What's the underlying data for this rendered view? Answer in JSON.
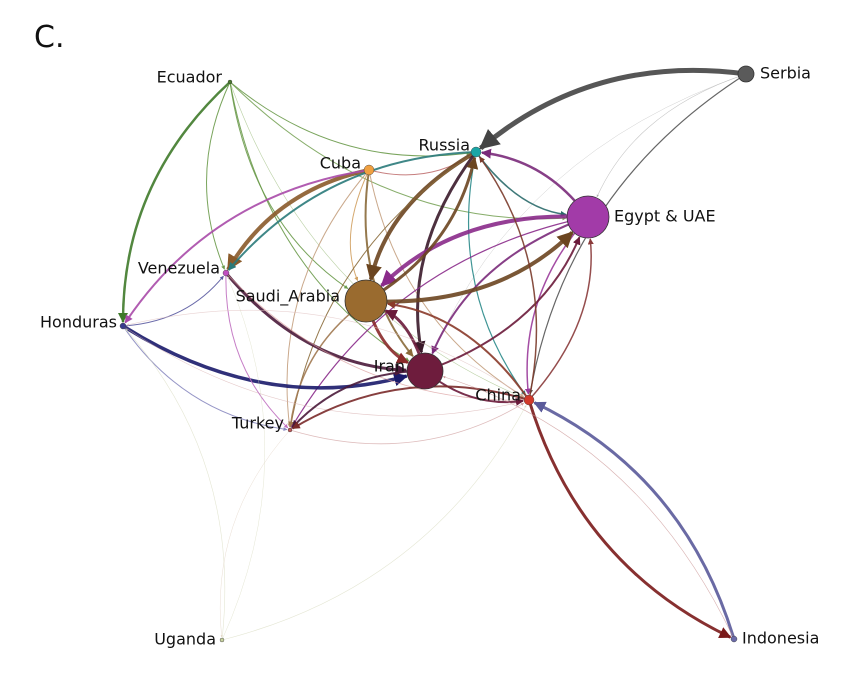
{
  "panel_label": "C.",
  "nodes": [
    {
      "id": "serbia",
      "label": "Serbia",
      "color": "#5a5a5a"
    },
    {
      "id": "ecuador",
      "label": "Ecuador",
      "color": "#4a7a2e"
    },
    {
      "id": "russia",
      "label": "Russia",
      "color": "#1aa6a6"
    },
    {
      "id": "cuba",
      "label": "Cuba",
      "color": "#f0a040"
    },
    {
      "id": "egypt_uae",
      "label": "Egypt & UAE",
      "color": "#a23ba8"
    },
    {
      "id": "venezuela",
      "label": "Venezuela",
      "color": "#c04dc0"
    },
    {
      "id": "saudi_arabia",
      "label": "Saudi_Arabia",
      "color": "#9a6b2f"
    },
    {
      "id": "honduras",
      "label": "Honduras",
      "color": "#3a3a8c"
    },
    {
      "id": "iran",
      "label": "Iran",
      "color": "#6e1c3d"
    },
    {
      "id": "china",
      "label": "China",
      "color": "#d23a2a"
    },
    {
      "id": "turkey",
      "label": "Turkey",
      "color": "#c05a5a"
    },
    {
      "id": "uganda",
      "label": "Uganda",
      "color": "#c8d2a0"
    },
    {
      "id": "indonesia",
      "label": "Indonesia",
      "color": "#6a6aa8"
    }
  ],
  "edges": [
    {
      "source": "serbia",
      "target": "russia",
      "color": "#444444",
      "weight": 5
    },
    {
      "source": "serbia",
      "target": "china",
      "color": "#555555",
      "weight": 1.2
    },
    {
      "source": "serbia",
      "target": "egypt_uae",
      "color": "#aaaaaa",
      "weight": 0.6
    },
    {
      "source": "serbia",
      "target": "iran",
      "color": "#bbbbbb",
      "weight": 0.5
    },
    {
      "source": "ecuador",
      "target": "honduras",
      "color": "#3f7a2a",
      "weight": 2.5
    },
    {
      "source": "ecuador",
      "target": "russia",
      "color": "#6a9a4a",
      "weight": 1
    },
    {
      "source": "ecuador",
      "target": "egypt_uae",
      "color": "#7aa45a",
      "weight": 1
    },
    {
      "source": "ecuador",
      "target": "saudi_arabia",
      "color": "#6a9a4a",
      "weight": 1
    },
    {
      "source": "ecuador",
      "target": "iran",
      "color": "#6a9a4a",
      "weight": 1
    },
    {
      "source": "ecuador",
      "target": "venezuela",
      "color": "#6a9a4a",
      "weight": 1
    },
    {
      "source": "ecuador",
      "target": "china",
      "color": "#9abb7a",
      "weight": 0.6
    },
    {
      "source": "cuba",
      "target": "venezuela",
      "color": "#8a5a2a",
      "weight": 4
    },
    {
      "source": "cuba",
      "target": "iran",
      "color": "#8a6a3a",
      "weight": 2
    },
    {
      "source": "cuba",
      "target": "honduras",
      "color": "#a94aa9",
      "weight": 2
    },
    {
      "source": "cuba",
      "target": "russia",
      "color": "#c07070",
      "weight": 1
    },
    {
      "source": "cuba",
      "target": "turkey",
      "color": "#c4a080",
      "weight": 1
    },
    {
      "source": "cuba",
      "target": "china",
      "color": "#c4a080",
      "weight": 1
    },
    {
      "source": "cuba",
      "target": "saudi_arabia",
      "color": "#d0a060",
      "weight": 1
    },
    {
      "source": "russia",
      "target": "saudi_arabia",
      "color": "#6b4520",
      "weight": 4
    },
    {
      "source": "russia",
      "target": "iran",
      "color": "#3a1a2a",
      "weight": 3
    },
    {
      "source": "russia",
      "target": "egypt_uae",
      "color": "#2a6a6a",
      "weight": 1.5
    },
    {
      "source": "russia",
      "target": "venezuela",
      "color": "#2a7a7a",
      "weight": 2
    },
    {
      "source": "russia",
      "target": "china",
      "color": "#2a8a8a",
      "weight": 1.2
    },
    {
      "source": "russia",
      "target": "turkey",
      "color": "#8a6a3a",
      "weight": 1
    },
    {
      "source": "egypt_uae",
      "target": "saudi_arabia",
      "color": "#8a2a8a",
      "weight": 4
    },
    {
      "source": "egypt_uae",
      "target": "iran",
      "color": "#7a2a7a",
      "weight": 2
    },
    {
      "source": "egypt_uae",
      "target": "china",
      "color": "#9a3a9a",
      "weight": 1.5
    },
    {
      "source": "egypt_uae",
      "target": "russia",
      "color": "#7a2a7a",
      "weight": 2.5
    },
    {
      "source": "egypt_uae",
      "target": "turkey",
      "color": "#8a2a8a",
      "weight": 1.2
    },
    {
      "source": "saudi_arabia",
      "target": "egypt_uae",
      "color": "#6b4520",
      "weight": 4
    },
    {
      "source": "saudi_arabia",
      "target": "iran",
      "color": "#8a2a2a",
      "weight": 3
    },
    {
      "source": "saudi_arabia",
      "target": "turkey",
      "color": "#a07850",
      "weight": 1.5
    },
    {
      "source": "saudi_arabia",
      "target": "russia",
      "color": "#6b4520",
      "weight": 3
    },
    {
      "source": "honduras",
      "target": "iran",
      "color": "#1a1a6a",
      "weight": 3.5
    },
    {
      "source": "honduras",
      "target": "turkey",
      "color": "#8a8ac0",
      "weight": 1
    },
    {
      "source": "honduras",
      "target": "venezuela",
      "color": "#5a5aa0",
      "weight": 1
    },
    {
      "source": "honduras",
      "target": "china",
      "color": "#d8b0b0",
      "weight": 0.6
    },
    {
      "source": "venezuela",
      "target": "iran",
      "color": "#4a1a3a",
      "weight": 3
    },
    {
      "source": "venezuela",
      "target": "turkey",
      "color": "#c070c0",
      "weight": 1
    },
    {
      "source": "venezuela",
      "target": "china",
      "color": "#d89a9a",
      "weight": 0.8
    },
    {
      "source": "iran",
      "target": "turkey",
      "color": "#4a1a3a",
      "weight": 2
    },
    {
      "source": "iran",
      "target": "china",
      "color": "#6a1a3a",
      "weight": 2
    },
    {
      "source": "iran",
      "target": "saudi_arabia",
      "color": "#6a1a3a",
      "weight": 3
    },
    {
      "source": "iran",
      "target": "egypt_uae",
      "color": "#6a1a3a",
      "weight": 2
    },
    {
      "source": "china",
      "target": "indonesia",
      "color": "#7a1a1a",
      "weight": 3
    },
    {
      "source": "china",
      "target": "turkey",
      "color": "#7a2a2a",
      "weight": 2
    },
    {
      "source": "china",
      "target": "saudi_arabia",
      "color": "#8a3a2a",
      "weight": 2
    },
    {
      "source": "china",
      "target": "russia",
      "color": "#7a3a2a",
      "weight": 1.5
    },
    {
      "source": "china",
      "target": "egypt_uae",
      "color": "#8a3a3a",
      "weight": 1.5
    },
    {
      "source": "china",
      "target": "honduras",
      "color": "#e0c0c0",
      "weight": 0.6
    },
    {
      "source": "indonesia",
      "target": "china",
      "color": "#5a5a9a",
      "weight": 3
    },
    {
      "source": "indonesia",
      "target": "iran",
      "color": "#c89090",
      "weight": 0.6
    },
    {
      "source": "uganda",
      "target": "honduras",
      "color": "#d8dcc0",
      "weight": 0.6
    },
    {
      "source": "uganda",
      "target": "china",
      "color": "#d8dcc0",
      "weight": 0.6
    },
    {
      "source": "uganda",
      "target": "venezuela",
      "color": "#d8dcc0",
      "weight": 0.5
    },
    {
      "source": "turkey",
      "target": "uganda",
      "color": "#e0d0c0",
      "weight": 0.5
    },
    {
      "source": "turkey",
      "target": "china",
      "color": "#d0a0a0",
      "weight": 0.8
    }
  ]
}
